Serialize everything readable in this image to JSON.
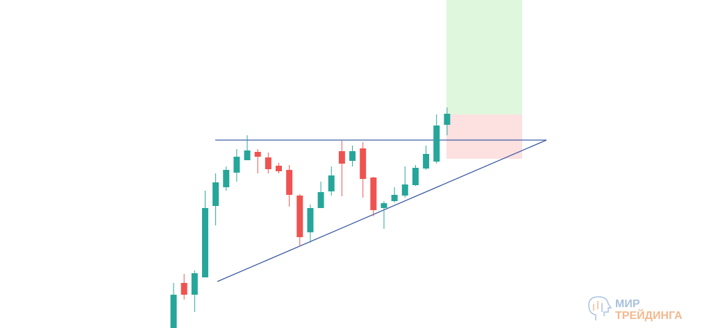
{
  "chart_data": {
    "type": "candlestick",
    "open": [
      0,
      65,
      48,
      73,
      176,
      203,
      224,
      242,
      254,
      246,
      234,
      228,
      191,
      138,
      173,
      197,
      255,
      241,
      259,
      217,
      173,
      183,
      191,
      206,
      230,
      240,
      293
    ],
    "high": [
      65,
      78,
      83,
      198,
      223,
      233,
      258,
      278,
      258,
      253,
      238,
      235,
      193,
      178,
      211,
      233,
      270,
      263,
      268,
      218,
      183,
      203,
      233,
      235,
      263,
      308,
      318
    ],
    "low": [
      0,
      41,
      23,
      73,
      148,
      198,
      211,
      242,
      223,
      223,
      223,
      175,
      118,
      123,
      173,
      191,
      190,
      233,
      188,
      161,
      143,
      181,
      188,
      205,
      228,
      237,
      278
    ],
    "close": [
      48,
      48,
      79,
      173,
      210,
      228,
      247,
      256,
      247,
      229,
      226,
      192,
      131,
      173,
      196,
      220,
      237,
      255,
      215,
      170,
      180,
      192,
      207,
      231,
      251,
      292,
      309
    ],
    "up_color": "#26a69a",
    "down_color": "#ef5350",
    "ylim": [
      0,
      473
    ]
  },
  "logo": {
    "line1": "МИР",
    "line2": "ТРЕЙДИНГА"
  }
}
